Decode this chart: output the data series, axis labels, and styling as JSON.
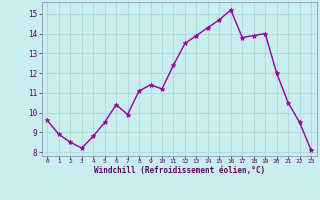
{
  "x": [
    0,
    1,
    2,
    3,
    4,
    5,
    6,
    7,
    8,
    9,
    10,
    11,
    12,
    13,
    14,
    15,
    16,
    17,
    18,
    19,
    20,
    21,
    22,
    23
  ],
  "y": [
    9.6,
    8.9,
    8.5,
    8.2,
    8.8,
    9.5,
    10.4,
    9.9,
    11.1,
    11.4,
    11.2,
    12.4,
    13.5,
    13.9,
    14.3,
    14.7,
    15.2,
    13.8,
    13.9,
    14.0,
    12.0,
    10.5,
    9.5,
    8.1
  ],
  "line_color": "#990099",
  "marker": "*",
  "marker_size": 3.5,
  "bg_color": "#c8eef0",
  "grid_color": "#b0d8da",
  "xlabel": "Windchill (Refroidissement éolien,°C)",
  "xlabel_color": "#660066",
  "tick_color": "#660066",
  "ylim": [
    7.8,
    15.6
  ],
  "xlim": [
    -0.5,
    23.5
  ],
  "yticks": [
    8,
    9,
    10,
    11,
    12,
    13,
    14,
    15
  ],
  "xticks": [
    0,
    1,
    2,
    3,
    4,
    5,
    6,
    7,
    8,
    9,
    10,
    11,
    12,
    13,
    14,
    15,
    16,
    17,
    18,
    19,
    20,
    21,
    22,
    23
  ],
  "line_width": 1.0,
  "spine_color": "#8888aa"
}
